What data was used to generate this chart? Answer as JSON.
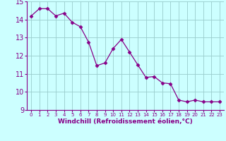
{
  "x": [
    0,
    1,
    2,
    3,
    4,
    5,
    6,
    7,
    8,
    9,
    10,
    11,
    12,
    13,
    14,
    15,
    16,
    17,
    18,
    19,
    20,
    21,
    22,
    23
  ],
  "y": [
    14.2,
    14.6,
    14.6,
    14.2,
    14.35,
    13.85,
    13.6,
    12.75,
    11.45,
    11.6,
    12.4,
    12.9,
    12.2,
    11.5,
    10.8,
    10.85,
    10.5,
    10.45,
    9.55,
    9.45,
    9.55,
    9.45,
    9.45,
    9.45
  ],
  "line_color": "#880088",
  "marker": "D",
  "marker_size": 2.5,
  "bg_color": "#ccffff",
  "grid_color": "#99cccc",
  "xlabel": "Windchill (Refroidissement éolien,°C)",
  "xlabel_color": "#880088",
  "tick_color": "#880088",
  "ylim": [
    9,
    15
  ],
  "xlim": [
    -0.5,
    23.5
  ],
  "yticks": [
    9,
    10,
    11,
    12,
    13,
    14,
    15
  ],
  "xticks": [
    0,
    1,
    2,
    3,
    4,
    5,
    6,
    7,
    8,
    9,
    10,
    11,
    12,
    13,
    14,
    15,
    16,
    17,
    18,
    19,
    20,
    21,
    22,
    23
  ],
  "ytick_fontsize": 7,
  "xtick_fontsize": 5,
  "xlabel_fontsize": 6.5
}
